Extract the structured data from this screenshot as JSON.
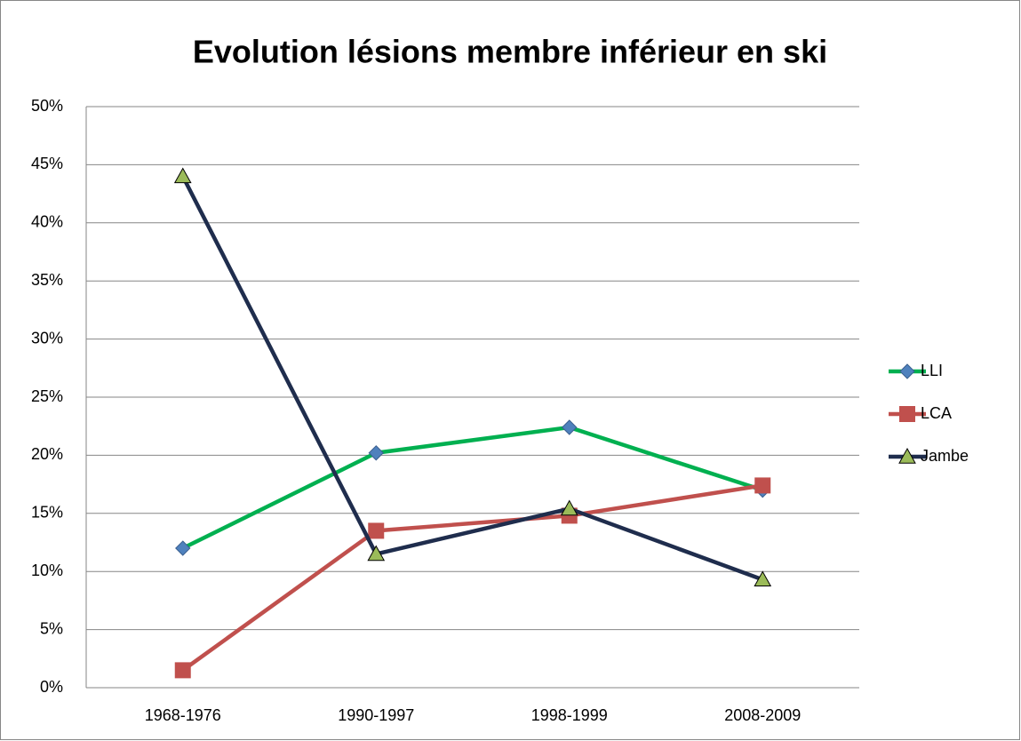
{
  "chart_data": {
    "type": "line",
    "title": "Evolution lésions membre inférieur en ski",
    "categories": [
      "1968-1976",
      "1990-1997",
      "1998-1999",
      "2008-2009"
    ],
    "series": [
      {
        "name": "LLI",
        "color": "#00b050",
        "marker": "diamond",
        "marker_color": "#4f81bd",
        "values": [
          12.0,
          20.2,
          22.4,
          17.0
        ]
      },
      {
        "name": "LCA",
        "color": "#c0504d",
        "marker": "square",
        "marker_color": "#c0504d",
        "values": [
          1.5,
          13.5,
          14.8,
          17.4
        ]
      },
      {
        "name": "Jambe",
        "color": "#1f2d4d",
        "marker": "triangle",
        "marker_color": "#9bbb59",
        "values": [
          44.0,
          11.5,
          15.4,
          9.3
        ]
      }
    ],
    "ylim": [
      0,
      50
    ],
    "yticks": [
      {
        "value": 0,
        "label": "0%"
      },
      {
        "value": 5,
        "label": "5%"
      },
      {
        "value": 10,
        "label": "10%"
      },
      {
        "value": 15,
        "label": "15%"
      },
      {
        "value": 20,
        "label": "20%"
      },
      {
        "value": 25,
        "label": "25%"
      },
      {
        "value": 30,
        "label": "30%"
      },
      {
        "value": 35,
        "label": "35%"
      },
      {
        "value": 40,
        "label": "40%"
      },
      {
        "value": 45,
        "label": "45%"
      },
      {
        "value": 50,
        "label": "50%"
      }
    ],
    "grid": true,
    "legend": "right"
  }
}
